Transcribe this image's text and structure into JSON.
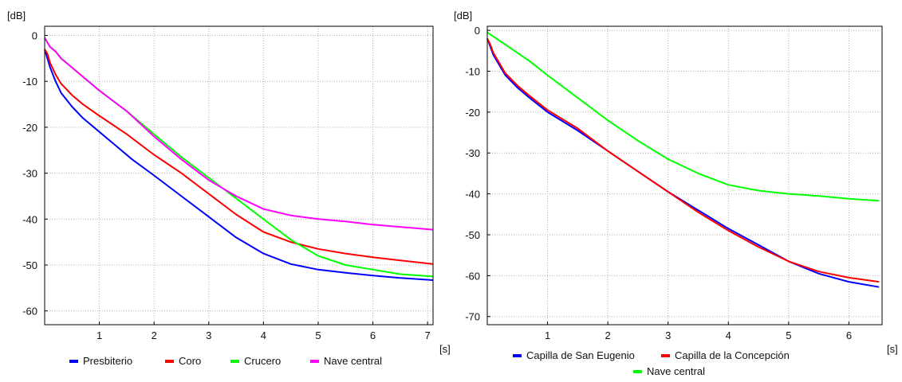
{
  "chart_data": [
    {
      "type": "line",
      "ylabel": "[dB]",
      "xlabel": "[s]",
      "xlim": [
        0,
        7.1
      ],
      "ylim": [
        -63,
        2
      ],
      "xticks": [
        1,
        2,
        3,
        4,
        5,
        6,
        7
      ],
      "yticks": [
        0,
        -10,
        -20,
        -30,
        -40,
        -50,
        -60
      ],
      "grid": true,
      "legend_position": "bottom",
      "series": [
        {
          "name": "Presbiterio",
          "color": "#0000ff",
          "x": [
            0,
            0.05,
            0.1,
            0.2,
            0.3,
            0.5,
            0.7,
            1,
            1.3,
            1.6,
            2,
            2.5,
            3,
            3.5,
            4,
            4.5,
            5,
            5.5,
            6,
            6.5,
            7.1
          ],
          "y": [
            -3,
            -5,
            -7,
            -10,
            -12.5,
            -15.5,
            -18,
            -21,
            -24,
            -27,
            -30.5,
            -35,
            -39.5,
            -44,
            -47.5,
            -49.8,
            -51,
            -51.7,
            -52.3,
            -52.8,
            -53.3
          ]
        },
        {
          "name": "Coro",
          "color": "#ff0000",
          "x": [
            0,
            0.05,
            0.1,
            0.2,
            0.3,
            0.5,
            0.7,
            1,
            1.5,
            2,
            2.5,
            3,
            3.5,
            4,
            4.5,
            5,
            5.5,
            6,
            6.5,
            7.1
          ],
          "y": [
            -3,
            -4,
            -6,
            -8.5,
            -10.5,
            -13,
            -15,
            -17.5,
            -21.5,
            -26,
            -30,
            -34.5,
            -39,
            -42.8,
            -45,
            -46.5,
            -47.5,
            -48.3,
            -49,
            -49.8
          ]
        },
        {
          "name": "Crucero",
          "color": "#00ff00",
          "x": [
            0,
            0.05,
            0.1,
            0.2,
            0.3,
            0.5,
            0.7,
            1,
            1.5,
            2,
            2.5,
            3,
            3.5,
            4,
            4.5,
            5,
            5.5,
            6,
            6.5,
            7.1
          ],
          "y": [
            -0.5,
            -1.5,
            -2.5,
            -3.5,
            -5,
            -7,
            -9,
            -12,
            -16.5,
            -21.5,
            -26.5,
            -31,
            -35.5,
            -40,
            -44.5,
            -48,
            -50,
            -51,
            -52,
            -52.5
          ]
        },
        {
          "name": "Nave central",
          "color": "#ff00ff",
          "x": [
            0,
            0.05,
            0.1,
            0.2,
            0.3,
            0.5,
            0.7,
            1,
            1.5,
            2,
            2.5,
            3,
            3.5,
            4,
            4.5,
            5,
            5.5,
            6,
            6.5,
            7.1
          ],
          "y": [
            -0.5,
            -1.5,
            -2.5,
            -3.5,
            -5,
            -7,
            -9,
            -12,
            -16.5,
            -22,
            -27,
            -31.5,
            -35,
            -37.8,
            -39.2,
            -40,
            -40.5,
            -41.2,
            -41.7,
            -42.3
          ]
        }
      ]
    },
    {
      "type": "line",
      "ylabel": "[dB]",
      "xlabel": "[s]",
      "xlim": [
        0,
        6.55
      ],
      "ylim": [
        -72,
        1
      ],
      "xticks": [
        1,
        2,
        3,
        4,
        5,
        6
      ],
      "yticks": [
        0,
        -10,
        -20,
        -30,
        -40,
        -50,
        -60,
        -70
      ],
      "grid": true,
      "legend_position": "bottom",
      "series": [
        {
          "name": "Capilla de San Eugenio",
          "color": "#0000ff",
          "x": [
            0,
            0.05,
            0.1,
            0.2,
            0.3,
            0.5,
            0.7,
            1,
            1.5,
            2,
            2.5,
            3,
            3.5,
            4,
            4.5,
            5,
            5.5,
            6,
            6.5
          ],
          "y": [
            -2,
            -4,
            -6,
            -8.5,
            -11,
            -14,
            -16.5,
            -20,
            -24.5,
            -29.5,
            -34.5,
            -39.5,
            -44,
            -48.5,
            -52.5,
            -56.5,
            -59.5,
            -61.5,
            -62.8
          ]
        },
        {
          "name": "Capilla de la Concepción",
          "color": "#ff0000",
          "x": [
            0,
            0.05,
            0.1,
            0.2,
            0.3,
            0.5,
            0.7,
            1,
            1.5,
            2,
            2.5,
            3,
            3.5,
            4,
            4.5,
            5,
            5.5,
            6,
            6.5
          ],
          "y": [
            -2,
            -3.5,
            -5.5,
            -8,
            -10.5,
            -13.5,
            -16,
            -19.5,
            -24,
            -29.5,
            -34.5,
            -39.5,
            -44.5,
            -49,
            -53,
            -56.5,
            -59,
            -60.5,
            -61.5
          ]
        },
        {
          "name": "Nave central",
          "color": "#00ff00",
          "x": [
            0,
            0.05,
            0.1,
            0.2,
            0.3,
            0.5,
            0.7,
            1,
            1.5,
            2,
            2.5,
            3,
            3.5,
            4,
            4.5,
            5,
            5.5,
            6,
            6.5
          ],
          "y": [
            -0.5,
            -1,
            -1.5,
            -2.5,
            -3.5,
            -5.5,
            -7.5,
            -11,
            -16.5,
            -22,
            -27,
            -31.5,
            -35,
            -37.8,
            -39.2,
            -40,
            -40.5,
            -41.2,
            -41.7
          ]
        }
      ]
    }
  ]
}
